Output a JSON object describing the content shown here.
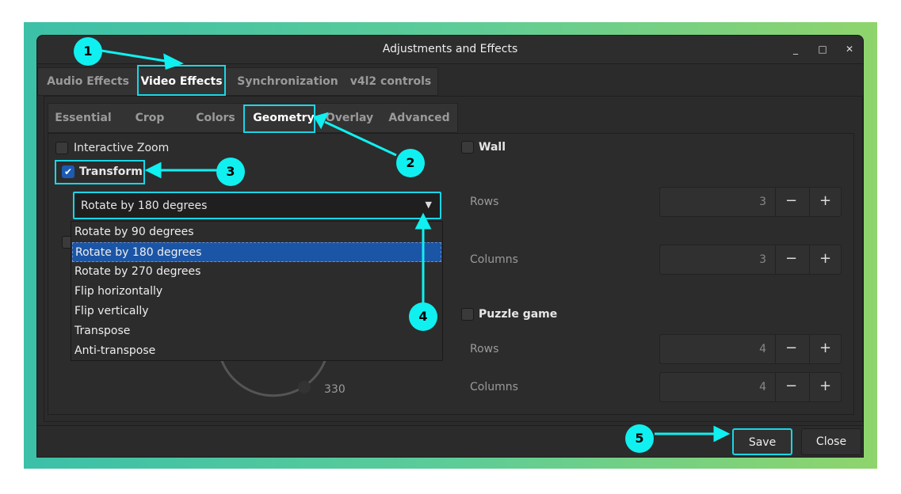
{
  "window": {
    "title": "Adjustments and Effects",
    "controls": {
      "minimize": "_",
      "maximize": "□",
      "close": "✕"
    }
  },
  "main_tabs": [
    {
      "label": "Audio Effects"
    },
    {
      "label": "Video Effects",
      "selected": true
    },
    {
      "label": "Synchronization"
    },
    {
      "label": "v4l2 controls"
    }
  ],
  "sub_tabs": [
    {
      "label": "Essential"
    },
    {
      "label": "Crop"
    },
    {
      "label": "Colors"
    },
    {
      "label": "Geometry",
      "selected": true
    },
    {
      "label": "Overlay"
    },
    {
      "label": "Advanced"
    }
  ],
  "geometry": {
    "interactive_zoom": {
      "label": "Interactive Zoom",
      "checked": false
    },
    "transform": {
      "label": "Transform",
      "checked": true
    },
    "transform_select": {
      "value": "Rotate by 180 degrees",
      "options": [
        "Rotate by 90 degrees",
        "Rotate by 180 degrees",
        "Rotate by 270 degrees",
        "Flip horizontally",
        "Flip vertically",
        "Transpose",
        "Anti-transpose"
      ],
      "selected_index": 1
    },
    "rotate_angle": "330",
    "wall": {
      "label": "Wall",
      "checked": false,
      "rows_label": "Rows",
      "rows": "3",
      "columns_label": "Columns",
      "columns": "3"
    },
    "puzzle": {
      "label": "Puzzle game",
      "checked": false,
      "rows_label": "Rows",
      "rows": "4",
      "columns_label": "Columns",
      "columns": "4"
    },
    "minus": "−",
    "plus": "+"
  },
  "footer": {
    "save": "Save",
    "close": "Close"
  },
  "annotations": {
    "color": "#10f0f0",
    "steps": [
      "1",
      "2",
      "3",
      "4",
      "5"
    ]
  }
}
